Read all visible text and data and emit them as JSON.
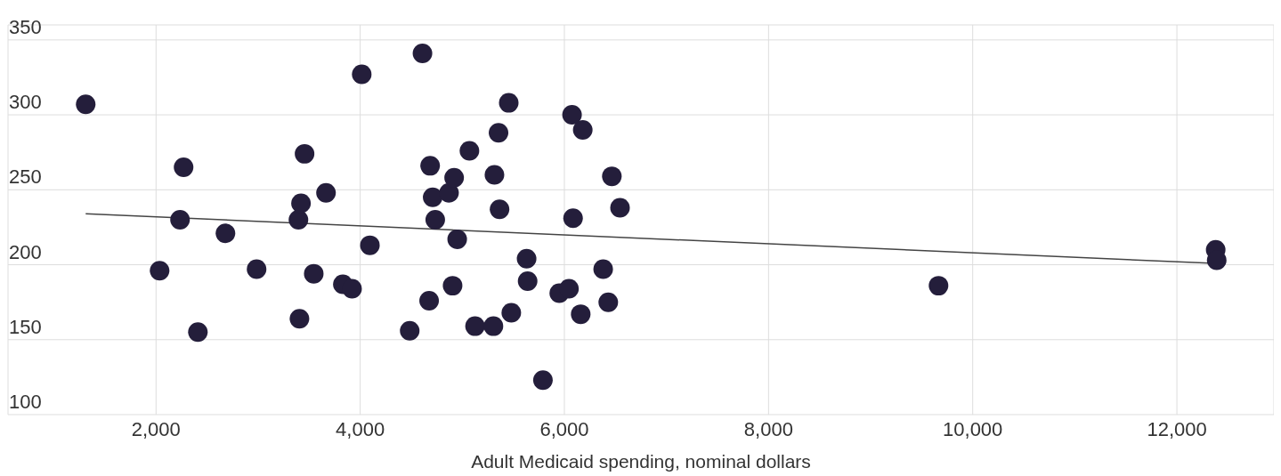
{
  "chart_data": {
    "type": "scatter",
    "xlabel": "Adult Medicaid spending, nominal dollars",
    "xlim": [
      550,
      12950
    ],
    "xticks": [
      {
        "value": 2000,
        "label": "2,000"
      },
      {
        "value": 4000,
        "label": "4,000"
      },
      {
        "value": 6000,
        "label": "6,000"
      },
      {
        "value": 8000,
        "label": "8,000"
      },
      {
        "value": 10000,
        "label": "10,000"
      },
      {
        "value": 12000,
        "label": "12,000"
      }
    ],
    "ylim": [
      100,
      360
    ],
    "yticks": [
      100,
      150,
      200,
      250,
      300,
      350
    ],
    "grid": true,
    "series": [
      {
        "type": "scatter",
        "color": "#241e3b",
        "marker": "circle",
        "x": [
          1311,
          2035,
          2270,
          2235,
          2410,
          2680,
          2985,
          3395,
          3420,
          3455,
          3405,
          3545,
          3665,
          3830,
          3920,
          4015,
          4095,
          4610,
          4485,
          4685,
          4710,
          4735,
          4675,
          4870,
          4920,
          4950,
          4905,
          5070,
          5125,
          5305,
          5315,
          5355,
          5365,
          5455,
          5480,
          5630,
          5640,
          5790,
          5950,
          6045,
          6075,
          6085,
          6180,
          6160,
          6380,
          6430,
          6465,
          6545,
          9665,
          12380,
          12390
        ],
        "values": [
          307,
          196,
          265,
          230,
          155,
          221,
          197,
          230,
          241,
          274,
          164,
          194,
          248,
          187,
          184,
          327,
          213,
          341,
          156,
          266,
          245,
          230,
          176,
          248,
          258,
          217,
          186,
          276,
          159,
          159,
          260,
          288,
          237,
          308,
          168,
          204,
          189,
          123,
          181,
          184,
          300,
          231,
          290,
          167,
          197,
          175,
          259,
          238,
          186,
          210,
          203
        ]
      },
      {
        "type": "line",
        "color": "#444444",
        "x": [
          1311,
          12320
        ],
        "values": [
          234,
          201
        ]
      }
    ]
  }
}
